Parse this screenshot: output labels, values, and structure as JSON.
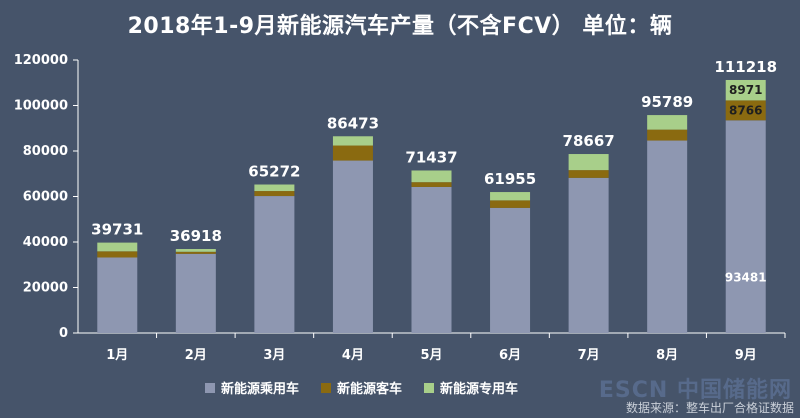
{
  "title": "2018年1-9月新能源汽车产量（不含FCV）    单位：辆",
  "source": "数据来源：整车出厂合格证数据",
  "watermark": "ESCN 中国储能网",
  "colors": {
    "background": "#46546a",
    "passenger": "#8e97b1",
    "bus": "#8a6a10",
    "special": "#a8cf8a",
    "axis": "#ffffff"
  },
  "chart_data": {
    "type": "bar",
    "stacked": true,
    "title": "2018年1-9月新能源汽车产量（不含FCV）    单位：辆",
    "categories": [
      "1月",
      "2月",
      "3月",
      "4月",
      "5月",
      "6月",
      "7月",
      "8月",
      "9月"
    ],
    "ylim": [
      0,
      120000
    ],
    "yticks": [
      0,
      20000,
      40000,
      60000,
      80000,
      100000,
      120000
    ],
    "ytick_labels": [
      "0",
      "20000",
      "40000",
      "60000",
      "80000",
      "100000",
      "120000"
    ],
    "grid": false,
    "legend_position": "bottom",
    "series": [
      {
        "name": "新能源乘用车",
        "color": "#8e97b1",
        "values": [
          33200,
          34800,
          60200,
          75800,
          64200,
          55000,
          68200,
          84600,
          93481
        ]
      },
      {
        "name": "新能源客车",
        "color": "#8a6a10",
        "values": [
          2700,
          900,
          2200,
          6600,
          2100,
          3300,
          3400,
          4800,
          8766
        ]
      },
      {
        "name": "新能源专用车",
        "color": "#a8cf8a",
        "values": [
          3831,
          1218,
          2872,
          4073,
          5137,
          3655,
          7067,
          6389,
          8971
        ]
      }
    ],
    "totals": [
      39731,
      36918,
      65272,
      86473,
      71437,
      61955,
      78667,
      95789,
      111218
    ],
    "data_labels": [
      {
        "category": "9月",
        "series": "新能源乘用车",
        "text": "93481"
      },
      {
        "category": "9月",
        "series": "新能源客车",
        "text": "8766"
      },
      {
        "category": "9月",
        "series": "新能源专用车",
        "text": "8971"
      }
    ]
  }
}
